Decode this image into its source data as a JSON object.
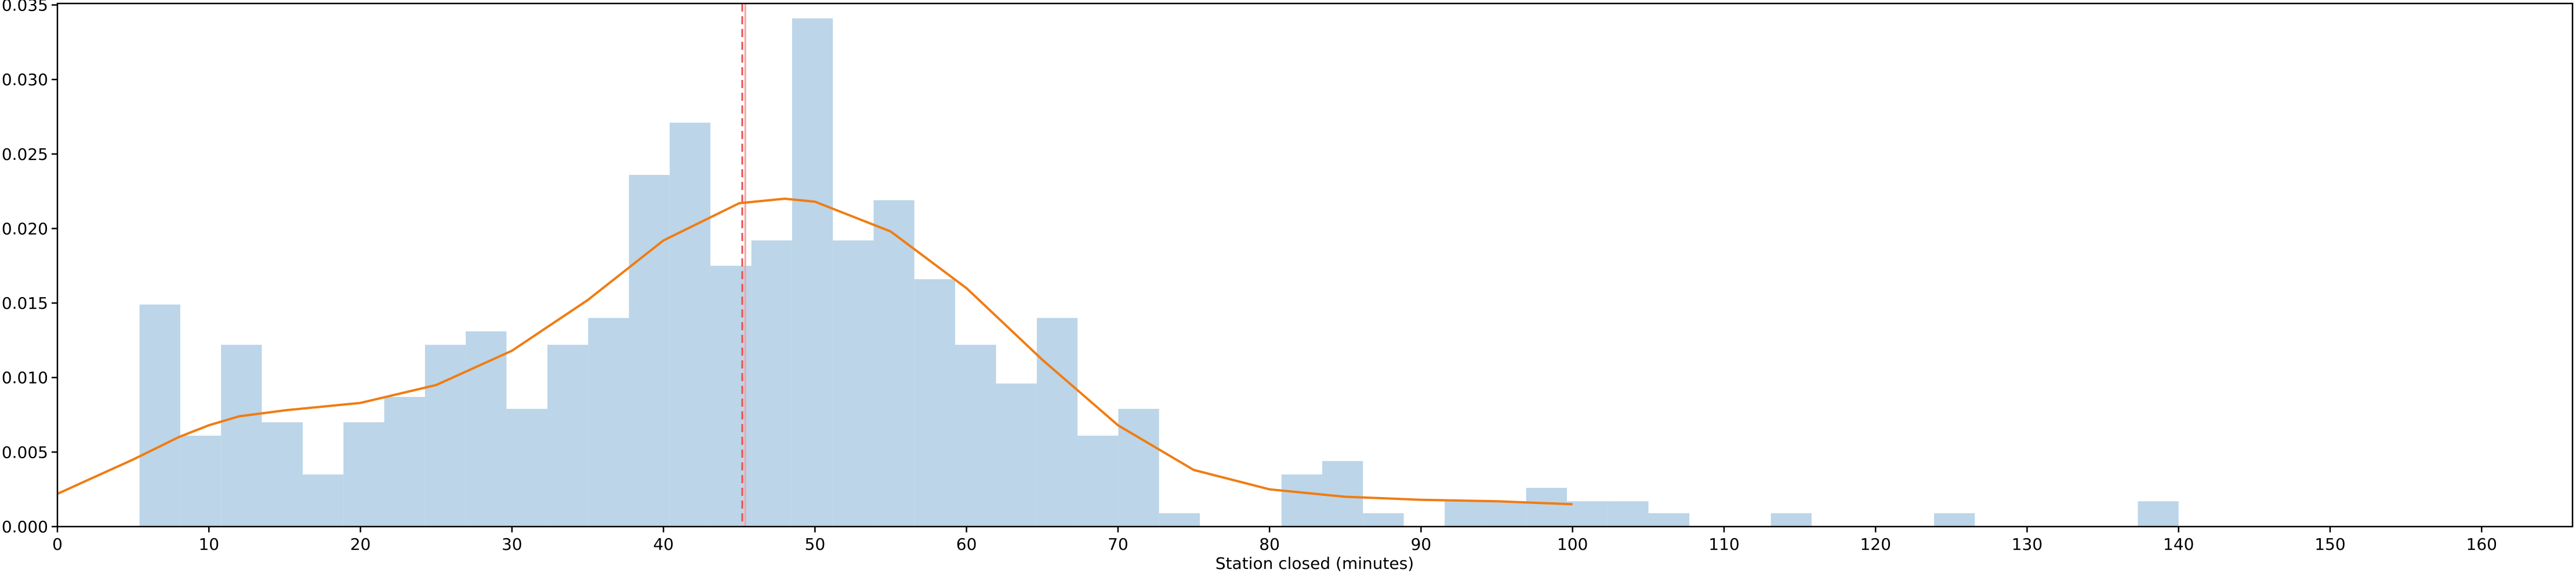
{
  "chart_data": {
    "type": "histogram",
    "xlabel": "Station closed (minutes)",
    "bins": [
      5.42,
      8.11,
      10.8,
      13.49,
      16.19,
      18.88,
      21.57,
      24.26,
      26.95,
      29.64,
      32.34,
      35.03,
      37.72,
      40.41,
      43.1,
      45.8,
      48.49,
      51.18,
      53.87,
      56.56,
      59.25,
      61.95,
      64.64,
      67.33,
      70.02,
      72.71,
      75.4,
      78.1,
      80.79,
      83.48,
      86.17,
      88.86,
      91.56,
      94.25,
      96.94,
      99.63,
      102.32,
      105.01,
      107.71,
      110.4,
      113.09,
      115.78,
      118.48,
      121.17,
      123.86,
      126.55,
      129.24,
      131.93,
      134.62,
      137.31,
      140.0
    ],
    "values": [
      0.0149,
      0.0061,
      0.0122,
      0.007,
      0.0035,
      0.007,
      0.0087,
      0.0122,
      0.0131,
      0.0079,
      0.0122,
      0.014,
      0.0236,
      0.0271,
      0.0175,
      0.0192,
      0.0341,
      0.0192,
      0.0219,
      0.0166,
      0.0122,
      0.0096,
      0.014,
      0.0061,
      0.0079,
      0.0009,
      0,
      0,
      0.0035,
      0.0044,
      0.0009,
      0,
      0.0017,
      0.0017,
      0.0026,
      0.0017,
      0.0017,
      0.0009,
      0,
      0,
      0.0009,
      0,
      0,
      0,
      0.0009,
      0,
      0,
      0,
      0,
      0.0017
    ],
    "color": "#bcd5e8",
    "kde": {
      "color": "#f07c12",
      "x": [
        0,
        5,
        8,
        10,
        12,
        15,
        20,
        25,
        30,
        35,
        40,
        45,
        48,
        50,
        55,
        60,
        65,
        70,
        75,
        80,
        85,
        90,
        95,
        100
      ],
      "values": [
        0.0022,
        0.0045,
        0.006,
        0.0068,
        0.0074,
        0.0078,
        0.0083,
        0.0095,
        0.0118,
        0.0152,
        0.0192,
        0.0217,
        0.022,
        0.0218,
        0.0198,
        0.016,
        0.0112,
        0.0068,
        0.0038,
        0.0025,
        0.002,
        0.0018,
        0.0017,
        0.0015
      ]
    },
    "vlines": [
      45.2,
      45.4
    ],
    "vline_colors": [
      "#e8514f",
      "#f4a3a3"
    ],
    "xlim": [
      0,
      166
    ],
    "ylim": [
      0,
      0.0351
    ],
    "xticks": [
      0,
      10,
      20,
      30,
      40,
      50,
      60,
      70,
      80,
      90,
      100,
      110,
      120,
      130,
      140,
      150,
      160
    ],
    "yticks": [
      {
        "value": 0,
        "label": "0.000"
      },
      {
        "value": 0.005,
        "label": "0.005"
      },
      {
        "value": 0.01,
        "label": "0.010"
      },
      {
        "value": 0.015,
        "label": "0.015"
      },
      {
        "value": 0.02,
        "label": "0.020"
      },
      {
        "value": 0.025,
        "label": "0.025"
      },
      {
        "value": 0.03,
        "label": "0.030"
      },
      {
        "value": 0.035,
        "label": "0.035"
      }
    ]
  }
}
